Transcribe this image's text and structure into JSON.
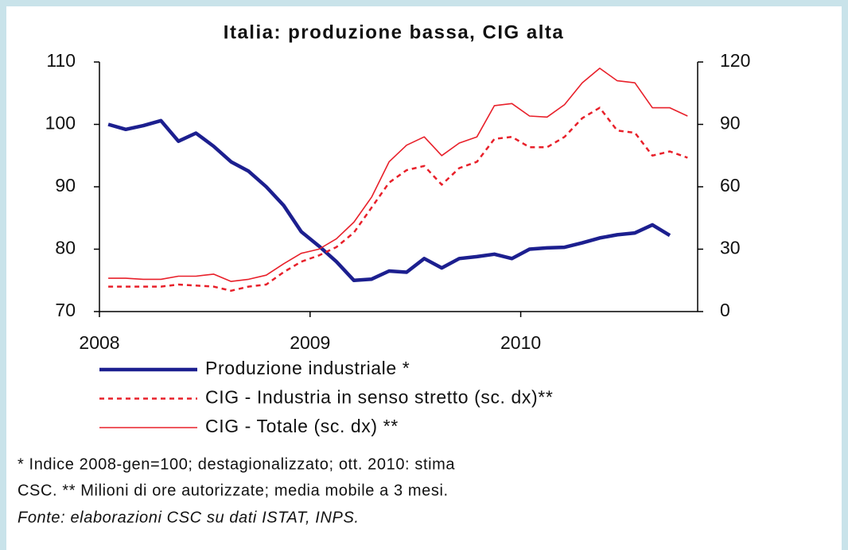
{
  "chart_data": {
    "type": "line",
    "title": "Italia: produzione bassa, CIG alta",
    "x": [
      2008.042,
      2008.125,
      2008.208,
      2008.292,
      2008.375,
      2008.458,
      2008.542,
      2008.625,
      2008.708,
      2008.792,
      2008.875,
      2008.958,
      2009.042,
      2009.125,
      2009.208,
      2009.292,
      2009.375,
      2009.458,
      2009.542,
      2009.625,
      2009.708,
      2009.792,
      2009.875,
      2009.958,
      2010.042,
      2010.125,
      2010.208,
      2010.292,
      2010.375,
      2010.458,
      2010.542,
      2010.625,
      2010.708,
      2010.792
    ],
    "xlim": [
      2008,
      2010.84
    ],
    "xticks": [
      2008,
      2009,
      2010
    ],
    "ylim": [
      70,
      110
    ],
    "yticks": [
      70,
      80,
      90,
      100,
      110
    ],
    "y2lim": [
      0,
      120
    ],
    "y2ticks": [
      0,
      30,
      60,
      90,
      120
    ],
    "series": [
      {
        "name": "Produzione industriale *",
        "color": "#1c1f8f",
        "width": 4.5,
        "dashed": false,
        "values": [
          100,
          99.2,
          99.8,
          100.6,
          97.3,
          98.6,
          96.5,
          94,
          92.5,
          90,
          87,
          82.8,
          80.5,
          78,
          75,
          75.2,
          76.5,
          76.3,
          78.5,
          77,
          78.5,
          78.8,
          79.2,
          78.5,
          80,
          80.2,
          80.3,
          81,
          81.8,
          82.3,
          82.6,
          83.9,
          82.2,
          null
        ]
      },
      {
        "name": "CIG - Industria in senso stretto (sc. dx)**",
        "color": "#e8202a",
        "width": 2.5,
        "dashed": true,
        "axis": "y2",
        "values": [
          12,
          12,
          12,
          12,
          13,
          12.5,
          12,
          10,
          12,
          13,
          19,
          24,
          27,
          31,
          38,
          50,
          62,
          68,
          70,
          61,
          69,
          72,
          83,
          84,
          79,
          79,
          84,
          93,
          98,
          87,
          86,
          75,
          77,
          74
        ]
      },
      {
        "name": "CIG - Totale (sc. dx) **",
        "color": "#e8202a",
        "width": 1.6,
        "dashed": false,
        "axis": "y2",
        "values": [
          16,
          16,
          15.5,
          15.5,
          17,
          17,
          18,
          14.5,
          15.5,
          17.5,
          23,
          28,
          30,
          35,
          43,
          55,
          72,
          80,
          84,
          75,
          81,
          84,
          99,
          100,
          94,
          93.5,
          99.5,
          110,
          117,
          111,
          110,
          98,
          98,
          94
        ]
      }
    ],
    "notes": [
      "* Indice 2008-gen=100; destagionalizzato; ott. 2010: stima",
      "CSC. ** Milioni di ore autorizzate; media mobile a 3 mesi."
    ],
    "source": "Fonte: elaborazioni CSC su dati ISTAT, INPS."
  }
}
